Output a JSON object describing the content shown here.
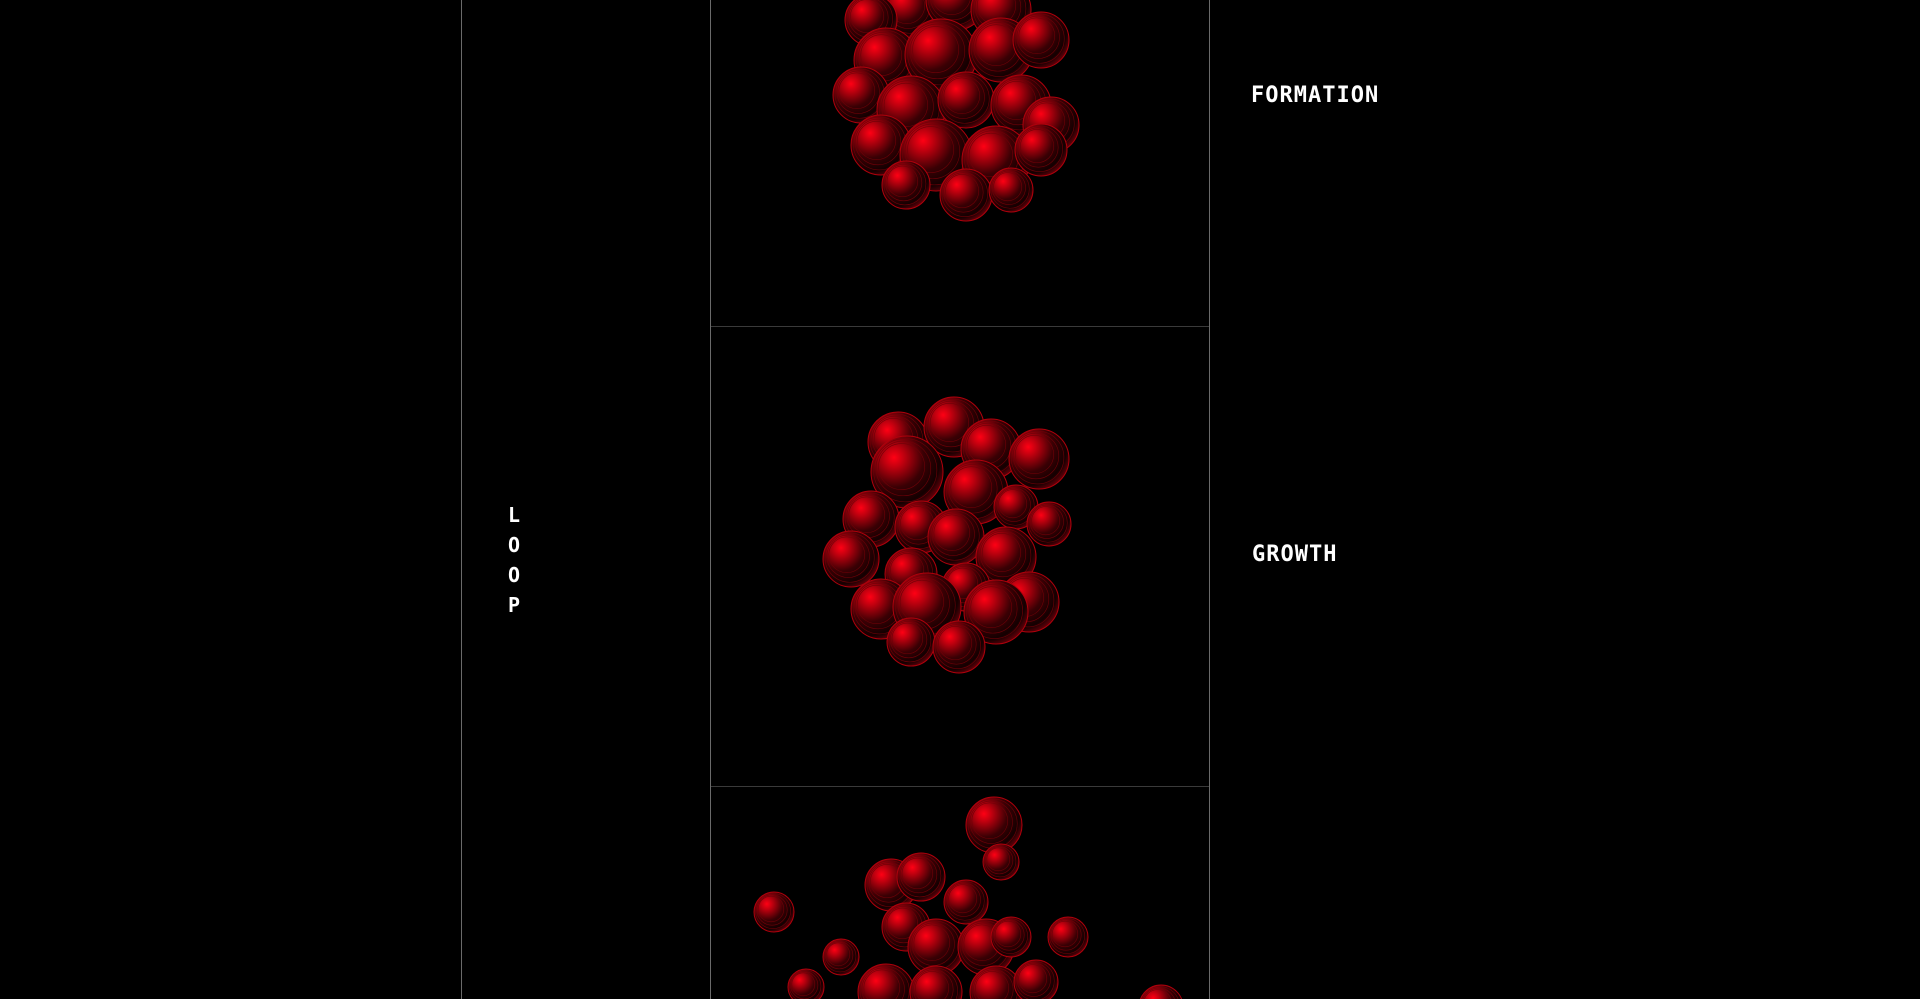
{
  "vertical_label": [
    "L",
    "O",
    "O",
    "P"
  ],
  "stages": [
    {
      "label": "FORMATION"
    },
    {
      "label": "GROWTH"
    }
  ],
  "colors": {
    "background": "#000000",
    "divider": "#6a6a6a",
    "sphere_accent": "#ff0014",
    "text": "#ffffff"
  },
  "icons": [
    "sphere-cluster-merged",
    "sphere-cluster-loose",
    "sphere-cluster-dispersed"
  ]
}
